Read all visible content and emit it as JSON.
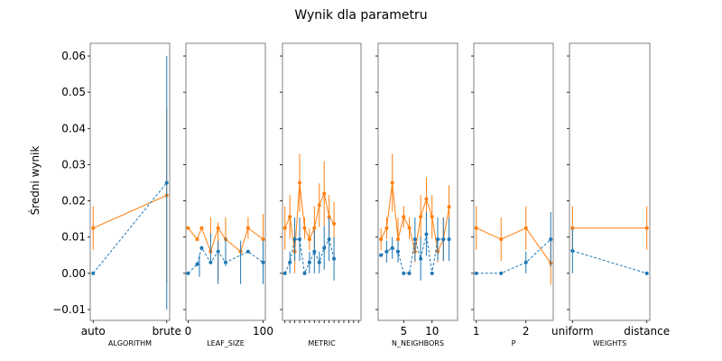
{
  "figure": {
    "title": "Wynik dla parametru",
    "ylabel": "Średni wynik"
  },
  "chart_data": {
    "type": "line",
    "ylim": [
      -0.013,
      0.0635
    ],
    "yticks": [
      -0.01,
      0.0,
      0.01,
      0.02,
      0.03,
      0.04,
      0.05,
      0.06
    ],
    "ytick_labels": [
      "−0.01",
      "0.00",
      "0.01",
      "0.02",
      "0.03",
      "0.04",
      "0.05",
      "0.06"
    ],
    "colors": {
      "blue": "#1f77b4",
      "orange": "#ff7f0e",
      "frame": "#808080"
    },
    "series_styles": {
      "blue": "dashed-marker",
      "orange": "solid-marker"
    },
    "panels": [
      {
        "xlabel": "ALGORITHM",
        "xlim": [
          -0.04,
          1.04
        ],
        "xticks": [
          0,
          1
        ],
        "xtick_labels": [
          "auto",
          "brute"
        ],
        "x": [
          0,
          1
        ],
        "blue": {
          "y": [
            0.0,
            0.025
          ],
          "err": [
            0.0,
            0.035
          ]
        },
        "orange": {
          "y": [
            0.0125,
            0.0215
          ],
          "err": [
            0.006,
            0.024
          ]
        }
      },
      {
        "xlabel": "LEAF_SIZE",
        "xlim": [
          -3,
          103
        ],
        "xticks": [
          0,
          100
        ],
        "xtick_labels": [
          "0",
          "100"
        ],
        "x": [
          0,
          15,
          30,
          40,
          50,
          70,
          80,
          100
        ],
        "blue": {
          "y": [
            0.0,
            0.002,
            0.007,
            0.003,
            0.006,
            0.003,
            0.006,
            0.003
          ],
          "err": [
            0.0,
            0.003,
            0.004,
            0.006,
            0.004,
            0.006,
            0.0,
            0.006
          ]
        },
        "orange": {
          "y": [
            0.0125,
            0.0094,
            0.0125,
            0.006,
            0.0125,
            0.0094,
            0.0125,
            0.0094
          ],
          "err": [
            0.0,
            0.0,
            0.003,
            0.008,
            0.003,
            0.0,
            0.003,
            0.007
          ]
        },
        "blue_points": [
          {
            "x": 0,
            "y": 0.0
          },
          {
            "x": 12,
            "y": 0.0025
          },
          {
            "x": 18,
            "y": 0.007
          },
          {
            "x": 30,
            "y": 0.003
          },
          {
            "x": 40,
            "y": 0.006
          },
          {
            "x": 50,
            "y": 0.003
          },
          {
            "x": 80,
            "y": 0.006
          },
          {
            "x": 100,
            "y": 0.003
          }
        ],
        "orange_points": [
          {
            "x": 0,
            "y": 0.0125
          },
          {
            "x": 12,
            "y": 0.0094
          },
          {
            "x": 18,
            "y": 0.0125
          },
          {
            "x": 30,
            "y": 0.006
          },
          {
            "x": 40,
            "y": 0.0125
          },
          {
            "x": 50,
            "y": 0.0094
          },
          {
            "x": 70,
            "y": 0.006
          },
          {
            "x": 80,
            "y": 0.0125
          },
          {
            "x": 100,
            "y": 0.0094
          }
        ]
      },
      {
        "xlabel": "METRIC",
        "xlim": [
          -0.5,
          15.5
        ],
        "xticks": [
          0,
          1,
          2,
          3,
          4,
          5,
          6,
          7,
          8,
          9,
          10,
          11,
          12,
          13,
          14,
          15
        ],
        "xtick_labels": [
          "",
          "",
          "",
          "",
          "",
          "",
          "",
          "",
          "",
          "",
          "",
          "",
          "",
          "",
          "",
          ""
        ],
        "x": [
          0,
          1,
          2,
          3,
          4,
          5,
          6,
          7,
          8,
          9,
          10,
          11,
          12,
          13,
          14
        ],
        "blue": {
          "y": [
            0.0,
            0.003,
            0.0094,
            0.0094,
            0.0,
            0.003,
            0.006,
            0.003,
            0.007,
            0.0094,
            0.004,
            0.0,
            0.0,
            0.0,
            0.0
          ],
          "err": [
            0.0,
            0.003,
            0.006,
            0.006,
            0.0,
            0.003,
            0.006,
            0.003,
            0.006,
            0.006,
            0.006,
            0,
            0,
            0,
            0
          ]
        },
        "orange": {
          "y": [
            0.0125,
            0.0156,
            0.006,
            0.025,
            0.0125,
            0.0094,
            0.0125,
            0.0188,
            0.022,
            0.0156,
            0.0137,
            0,
            0,
            0,
            0
          ],
          "err": [
            0.006,
            0.006,
            0.006,
            0.008,
            0.003,
            0.003,
            0.006,
            0.006,
            0.009,
            0.006,
            0.006,
            0,
            0,
            0,
            0
          ]
        }
      },
      {
        "xlabel": "N_NEIGHBORS",
        "xlim": [
          0.5,
          14.5
        ],
        "xticks": [
          5,
          10
        ],
        "xtick_labels": [
          "5",
          "10"
        ],
        "x": [
          1,
          2,
          3,
          4,
          5,
          6,
          7,
          8,
          9,
          10,
          11,
          12,
          13,
          14
        ],
        "blue": {
          "y": [
            0.005,
            0.006,
            0.007,
            0.006,
            0.0,
            0.0,
            0.0094,
            0.004,
            0.0108,
            0.0,
            0.0094,
            0.0094,
            0.0094,
            0.0
          ],
          "err": [
            0.0,
            0.003,
            0.003,
            0.003,
            0.0,
            0.0,
            0.006,
            0.006,
            0.006,
            0.0,
            0.006,
            0.006,
            0.006,
            0
          ]
        },
        "orange": {
          "y": [
            0.0094,
            0.0125,
            0.025,
            0.0094,
            0.0156,
            0.0125,
            0.006,
            0.0156,
            0.0205,
            0.0156,
            0.006,
            0.0094,
            0.0183,
            0.0
          ],
          "err": [
            0.003,
            0.003,
            0.008,
            0.006,
            0.003,
            0.003,
            0.003,
            0.006,
            0.006,
            0.006,
            0.003,
            0.006,
            0.006,
            0
          ]
        }
      },
      {
        "xlabel": "P",
        "xlim": [
          0.95,
          2.55
        ],
        "xticks": [
          1,
          2
        ],
        "xtick_labels": [
          "1",
          "2"
        ],
        "x": [
          1,
          1.5,
          2,
          2.5
        ],
        "blue": {
          "y": [
            0.0,
            0.0,
            0.003,
            0.0094
          ],
          "err": [
            0.0,
            0.0,
            0.003,
            0.0075
          ]
        },
        "orange": {
          "y": [
            0.0125,
            0.0094,
            0.0125,
            0.0028
          ],
          "err": [
            0.006,
            0.006,
            0.006,
            0.006
          ]
        }
      },
      {
        "xlabel": "WEIGHTS",
        "xlim": [
          -0.04,
          1.04
        ],
        "xticks": [
          0,
          1
        ],
        "xtick_labels": [
          "uniform",
          "distance"
        ],
        "x": [
          0,
          1
        ],
        "blue": {
          "y": [
            0.0062,
            0.0
          ],
          "err": [
            0.0062,
            0.0
          ]
        },
        "orange": {
          "y": [
            0.0125,
            0.0125
          ],
          "err": [
            0.006,
            0.006
          ]
        }
      }
    ]
  }
}
